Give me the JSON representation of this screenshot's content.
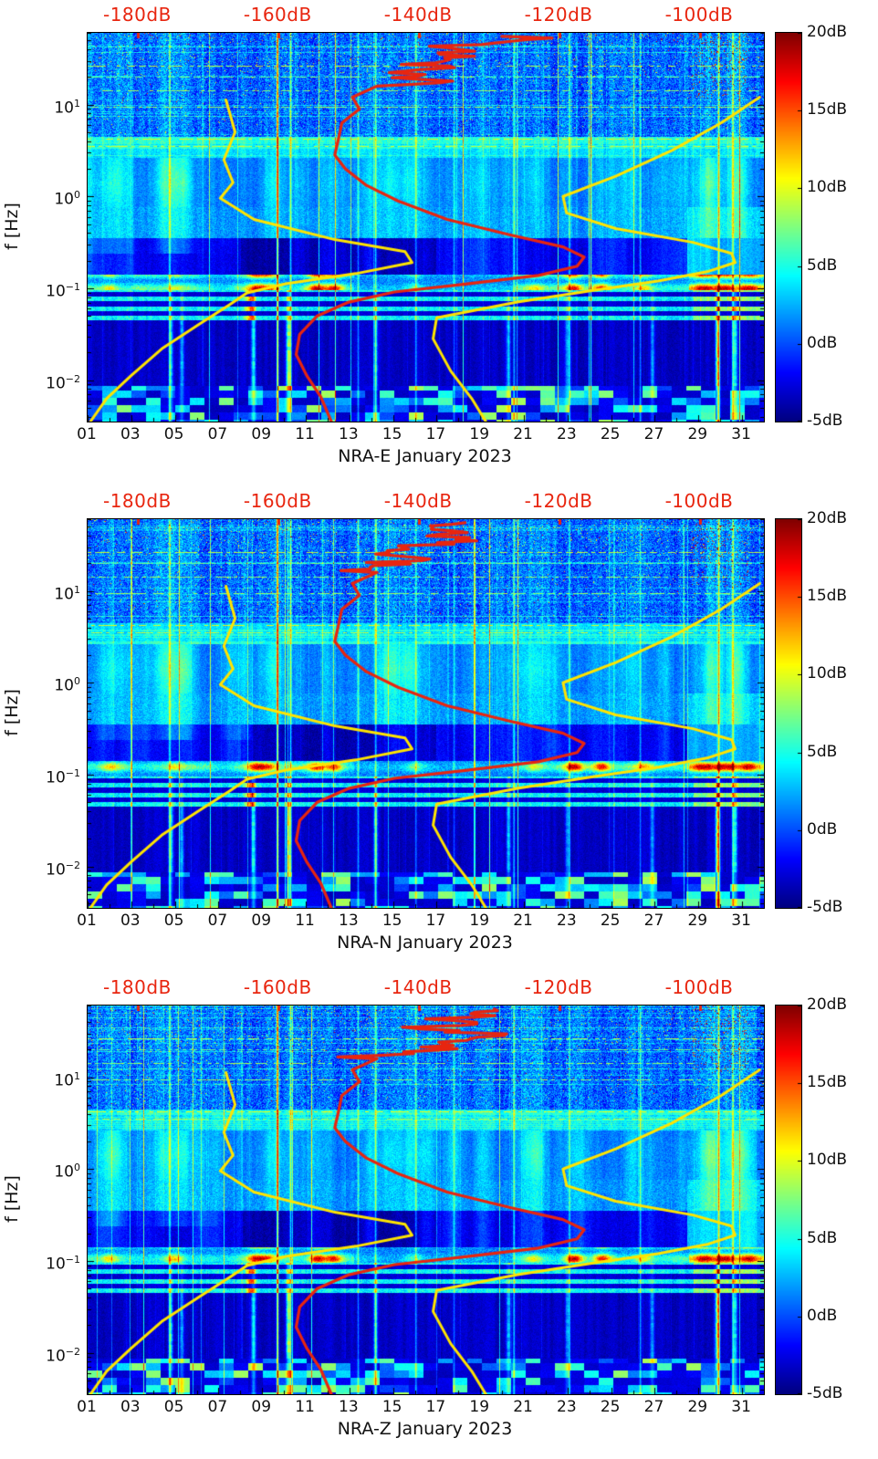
{
  "figure": {
    "ylabel": "f [Hz]",
    "panels": [
      {
        "station": "NRA-E",
        "xlabel": "NRA-E January 2023"
      },
      {
        "station": "NRA-N",
        "xlabel": "NRA-N January 2023"
      },
      {
        "station": "NRA-Z",
        "xlabel": "NRA-Z January 2023"
      }
    ],
    "top_axis": {
      "labels": [
        "-180dB",
        "-160dB",
        "-140dB",
        "-120dB",
        "-100dB"
      ],
      "values": [
        -180,
        -160,
        -140,
        -120,
        -100
      ],
      "color": "#e8250f"
    },
    "x_ticks": [
      "01",
      "03",
      "05",
      "07",
      "09",
      "11",
      "13",
      "15",
      "17",
      "19",
      "21",
      "23",
      "25",
      "27",
      "29",
      "31"
    ],
    "y_ticks": {
      "mantissa": "10",
      "exponents": [
        "1",
        "0",
        "−1",
        "−2"
      ],
      "values": [
        1,
        0,
        -1,
        -2
      ]
    },
    "colorbar_ticks": [
      "20dB",
      "15dB",
      "10dB",
      "5dB",
      "0dB",
      "-5dB"
    ],
    "colorbar_values": [
      20,
      15,
      10,
      5,
      0,
      -5
    ]
  },
  "chart_data": {
    "type": "heatmap",
    "description": "Three seismic ambient-noise power spectral density spectrograms (components E, N, Z of station NRA) for January 2023, jet colormap, with Peterson low/high noise model curves (yellow) and station median PSD (red) overlaid against the red dB axis on top.",
    "panels": [
      "NRA-E January 2023",
      "NRA-N January 2023",
      "NRA-Z January 2023"
    ],
    "time_axis": {
      "month": "January 2023",
      "range_days": [
        1,
        32
      ],
      "tick_days": [
        1,
        3,
        5,
        7,
        9,
        11,
        13,
        15,
        17,
        19,
        21,
        23,
        25,
        27,
        29,
        31
      ]
    },
    "freq_axis": {
      "label": "f [Hz]",
      "scale": "log10",
      "log_range": [
        -2.45,
        1.78
      ],
      "tick_exponents": [
        1,
        0,
        -1,
        -2
      ]
    },
    "color_axis": {
      "colormap": "jet",
      "range_db": [
        -5,
        20
      ],
      "tick_values": [
        20,
        15,
        10,
        5,
        0,
        -5
      ]
    },
    "psd_axis": {
      "range_db": [
        -187.2,
        -90.9
      ],
      "tick_values": [
        -180,
        -160,
        -140,
        -120,
        -100
      ]
    },
    "overlays": {
      "noise_model_color": "#ffe400",
      "median_color": "#e8250f",
      "low_noise_model": [
        [
          -186.8,
          -2.45
        ],
        [
          -184.5,
          -2.2
        ],
        [
          -181.0,
          -1.95
        ],
        [
          -176.5,
          -1.65
        ],
        [
          -171.5,
          -1.4
        ],
        [
          -167.0,
          -1.18
        ],
        [
          -164.5,
          -1.05
        ],
        [
          -159.0,
          -0.95
        ],
        [
          -149.0,
          -0.84
        ],
        [
          -141.0,
          -0.72
        ],
        [
          -142.0,
          -0.6
        ],
        [
          -152.0,
          -0.47
        ],
        [
          -163.5,
          -0.25
        ],
        [
          -168.3,
          -0.02
        ],
        [
          -166.5,
          0.15
        ],
        [
          -167.8,
          0.4
        ],
        [
          -166.2,
          0.7
        ],
        [
          -167.5,
          1.05
        ]
      ],
      "high_noise_model": [
        [
          -130.5,
          -2.45
        ],
        [
          -132.5,
          -2.2
        ],
        [
          -135.5,
          -1.9
        ],
        [
          -138.0,
          -1.55
        ],
        [
          -137.5,
          -1.32
        ],
        [
          -126.0,
          -1.15
        ],
        [
          -115.0,
          -1.02
        ],
        [
          -106.0,
          -0.92
        ],
        [
          -99.0,
          -0.82
        ],
        [
          -95.0,
          -0.72
        ],
        [
          -95.5,
          -0.62
        ],
        [
          -101.0,
          -0.5
        ],
        [
          -112.0,
          -0.35
        ],
        [
          -119.0,
          -0.18
        ],
        [
          -119.5,
          0.0
        ],
        [
          -112.0,
          0.22
        ],
        [
          -104.0,
          0.5
        ],
        [
          -97.0,
          0.8
        ],
        [
          -91.5,
          1.08
        ]
      ],
      "median_psd": [
        [
          -152.5,
          -2.45
        ],
        [
          -154.0,
          -2.18
        ],
        [
          -156.0,
          -1.95
        ],
        [
          -157.5,
          -1.72
        ],
        [
          -157.0,
          -1.5
        ],
        [
          -154.5,
          -1.3
        ],
        [
          -150.0,
          -1.15
        ],
        [
          -143.5,
          -1.04
        ],
        [
          -134.0,
          -0.96
        ],
        [
          -123.0,
          -0.86
        ],
        [
          -117.5,
          -0.76
        ],
        [
          -116.5,
          -0.66
        ],
        [
          -119.5,
          -0.55
        ],
        [
          -127.0,
          -0.42
        ],
        [
          -136.0,
          -0.25
        ],
        [
          -143.0,
          -0.05
        ],
        [
          -147.5,
          0.12
        ],
        [
          -150.5,
          0.3
        ],
        [
          -152.0,
          0.45
        ],
        [
          -151.5,
          0.62
        ],
        [
          -151.0,
          0.8
        ],
        [
          -148.5,
          0.95
        ],
        [
          -149.5,
          1.08
        ],
        [
          -146.0,
          1.2
        ]
      ]
    },
    "texture": {
      "mid_plume_days": [
        [
          2.2,
          3,
          0.5
        ],
        [
          4.6,
          4.5,
          0.55
        ],
        [
          5.4,
          4,
          0.4
        ],
        [
          9.5,
          3.5,
          0.45
        ],
        [
          14.8,
          3,
          0.5
        ],
        [
          15.8,
          3,
          0.4
        ],
        [
          21.5,
          2.5,
          0.5
        ],
        [
          26.0,
          2.5,
          0.4
        ],
        [
          29.6,
          5,
          0.5
        ],
        [
          30.8,
          5,
          0.45
        ]
      ],
      "microseism_peaks": [
        [
          2.0,
          6
        ],
        [
          5.0,
          5
        ],
        [
          8.7,
          11
        ],
        [
          9.3,
          9
        ],
        [
          11.5,
          12
        ],
        [
          12.3,
          11
        ],
        [
          16.0,
          4
        ],
        [
          21.5,
          5
        ],
        [
          23.3,
          12
        ],
        [
          24.6,
          11
        ],
        [
          26.5,
          6
        ],
        [
          29.3,
          9
        ],
        [
          30.2,
          10
        ],
        [
          31.3,
          9
        ]
      ],
      "low_band_bright": [
        [
          4.8,
          8
        ],
        [
          5.3,
          7
        ],
        [
          8.6,
          10
        ],
        [
          10.2,
          13
        ],
        [
          14.2,
          6
        ],
        [
          20.3,
          7
        ],
        [
          23.0,
          6
        ],
        [
          26.9,
          6
        ],
        [
          29.9,
          15
        ],
        [
          30.7,
          9
        ]
      ],
      "bright_lines": [
        [
          9.7,
          14
        ],
        [
          4.75,
          6
        ],
        [
          10.3,
          7
        ],
        [
          14.2,
          6
        ],
        [
          16.05,
          5
        ],
        [
          20.55,
          6
        ],
        [
          23.1,
          5
        ],
        [
          26.35,
          5
        ],
        [
          29.95,
          9
        ],
        [
          30.6,
          7
        ],
        [
          13.4,
          5
        ],
        [
          17.8,
          4
        ]
      ],
      "dashed_lines": [
        [
          1.42,
          9
        ],
        [
          1.3,
          7
        ],
        [
          1.15,
          8
        ],
        [
          0.98,
          8
        ],
        [
          0.63,
          10
        ],
        [
          0.55,
          9
        ]
      ],
      "dark_band_days": [
        8,
        17
      ],
      "quiet_micro_days": [
        13.2,
        20.6
      ]
    }
  }
}
